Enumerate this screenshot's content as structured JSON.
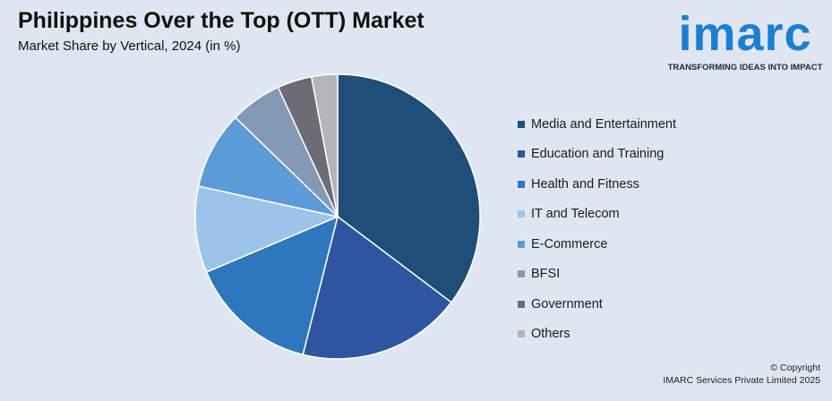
{
  "header": {
    "title": "Philippines Over the Top (OTT) Market",
    "subtitle": "Market Share by Vertical, 2024 (in %)"
  },
  "logo": {
    "word": "imarc",
    "tagline": "TRANSFORMING IDEAS INTO IMPACT",
    "color": "#1b7fd1"
  },
  "chart_data": {
    "type": "pie",
    "title": "Philippines Over the Top (OTT) Market",
    "subtitle": "Market Share by Vertical, 2024 (in %)",
    "legend_position": "right",
    "slices": [
      {
        "label": "Media and Entertainment",
        "value": 36,
        "color": "#1f4e79"
      },
      {
        "label": "Education and Training",
        "value": 19,
        "color": "#2f55a0"
      },
      {
        "label": "Health and Fitness",
        "value": 15,
        "color": "#2e77bc"
      },
      {
        "label": "IT and Telecom",
        "value": 10,
        "color": "#9cc4e9"
      },
      {
        "label": "E-Commerce",
        "value": 9,
        "color": "#5b9bd8"
      },
      {
        "label": "BFSI",
        "value": 6,
        "color": "#8499b5"
      },
      {
        "label": "Government",
        "value": 4,
        "color": "#6a6d73"
      },
      {
        "label": "Others",
        "value": 3,
        "color": "#b5b4b6"
      }
    ]
  },
  "footer": {
    "copyright": "© Copyright",
    "company": "IMARC Services Private Limited 2025"
  }
}
